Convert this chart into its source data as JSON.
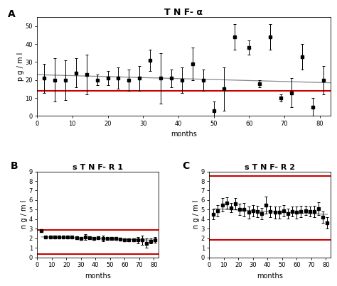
{
  "panel_A": {
    "title": "T N F- α",
    "label": "A",
    "ylabel": "p g / m l",
    "xlabel": "months",
    "xlim": [
      0,
      83
    ],
    "ylim": [
      0,
      55
    ],
    "yticks": [
      0,
      10,
      20,
      30,
      40,
      50
    ],
    "xticks": [
      0,
      10,
      20,
      30,
      40,
      50,
      60,
      70,
      80
    ],
    "x": [
      2,
      5,
      8,
      11,
      14,
      17,
      20,
      23,
      26,
      29,
      32,
      35,
      38,
      41,
      44,
      47,
      50,
      53,
      56,
      60,
      63,
      66,
      69,
      72,
      75,
      78,
      81
    ],
    "y": [
      21,
      20,
      20,
      24,
      23,
      20,
      21,
      21,
      20,
      21,
      31,
      21,
      21,
      20,
      29,
      20,
      3,
      15,
      44,
      38,
      18,
      44,
      10,
      13,
      33,
      5,
      20
    ],
    "yerr": [
      8,
      12,
      11,
      8,
      11,
      3,
      4,
      6,
      6,
      7,
      6,
      14,
      5,
      7,
      9,
      6,
      5,
      12,
      7,
      4,
      2,
      7,
      2,
      8,
      7,
      5,
      8
    ],
    "trend_x": [
      0,
      83
    ],
    "trend_y": [
      23.0,
      18.5
    ],
    "red_line_y": 14.0,
    "trend_color": "#888888",
    "red_color": "#cc0000"
  },
  "panel_B": {
    "title": "s T N F- R 1",
    "label": "B",
    "ylabel": "n g / m l",
    "xlabel": "months",
    "xlim": [
      0,
      83
    ],
    "ylim": [
      0,
      9
    ],
    "yticks": [
      0,
      1,
      2,
      3,
      4,
      5,
      6,
      7,
      8,
      9
    ],
    "xticks": [
      0,
      10,
      20,
      30,
      40,
      50,
      60,
      70,
      80
    ],
    "x": [
      3,
      6,
      9,
      12,
      15,
      18,
      21,
      24,
      27,
      30,
      33,
      36,
      39,
      42,
      45,
      48,
      51,
      54,
      57,
      60,
      63,
      66,
      69,
      72,
      75,
      78,
      81
    ],
    "y": [
      2.8,
      2.1,
      2.1,
      2.1,
      2.15,
      2.1,
      2.1,
      2.1,
      2.05,
      2.0,
      2.1,
      2.05,
      2.0,
      2.05,
      2.0,
      2.0,
      1.95,
      1.95,
      1.9,
      1.85,
      1.85,
      1.8,
      1.8,
      1.8,
      1.5,
      1.7,
      1.85
    ],
    "yerr": [
      0.08,
      0.15,
      0.15,
      0.1,
      0.15,
      0.12,
      0.1,
      0.12,
      0.12,
      0.15,
      0.3,
      0.1,
      0.15,
      0.12,
      0.3,
      0.15,
      0.15,
      0.12,
      0.12,
      0.15,
      0.12,
      0.1,
      0.3,
      0.5,
      0.5,
      0.25,
      0.3
    ],
    "trend_x": [
      3,
      81
    ],
    "trend_y": [
      2.15,
      1.8
    ],
    "red_line_y1": 0.35,
    "red_line_y2": 2.85,
    "trend_color": "#888888",
    "red_color": "#cc0000"
  },
  "panel_C": {
    "title": "s T N F- R 2",
    "label": "C",
    "ylabel": "n g / m l",
    "xlabel": "months",
    "xlim": [
      0,
      83
    ],
    "ylim": [
      0,
      9
    ],
    "yticks": [
      0,
      1,
      2,
      3,
      4,
      5,
      6,
      7,
      8,
      9
    ],
    "xticks": [
      0,
      10,
      20,
      30,
      40,
      50,
      60,
      70,
      80
    ],
    "x": [
      3,
      6,
      9,
      12,
      15,
      18,
      21,
      24,
      27,
      30,
      33,
      36,
      39,
      42,
      45,
      48,
      51,
      54,
      57,
      60,
      63,
      66,
      69,
      72,
      75,
      78,
      81
    ],
    "y": [
      4.5,
      4.9,
      5.5,
      5.7,
      5.2,
      5.6,
      5.0,
      5.0,
      4.7,
      4.9,
      4.8,
      4.6,
      5.5,
      4.8,
      4.7,
      4.7,
      4.9,
      4.6,
      4.8,
      4.7,
      4.8,
      4.9,
      4.8,
      4.8,
      5.1,
      4.2,
      3.6
    ],
    "yerr": [
      0.5,
      0.6,
      0.7,
      0.6,
      0.5,
      0.6,
      0.6,
      0.7,
      0.6,
      0.6,
      0.6,
      0.6,
      0.9,
      0.6,
      0.6,
      0.6,
      0.6,
      0.5,
      0.5,
      0.6,
      0.6,
      0.5,
      0.5,
      0.6,
      0.7,
      0.6,
      0.6
    ],
    "trend_x": [
      3,
      81
    ],
    "trend_y": [
      5.1,
      4.5
    ],
    "red_line_y1": 1.8,
    "red_line_y2": 8.5,
    "trend_color": "#888888",
    "red_color": "#cc0000"
  },
  "bg_color": "#ffffff",
  "data_color": "#000000",
  "marker": "s",
  "markersize": 2.5,
  "linewidth": 0.7,
  "elinewidth": 0.7,
  "capsize": 1.5,
  "label_fontsize": 10,
  "title_fontsize_A": 9,
  "title_fontsize_BC": 8,
  "tick_fontsize": 6,
  "axis_label_fontsize": 7
}
